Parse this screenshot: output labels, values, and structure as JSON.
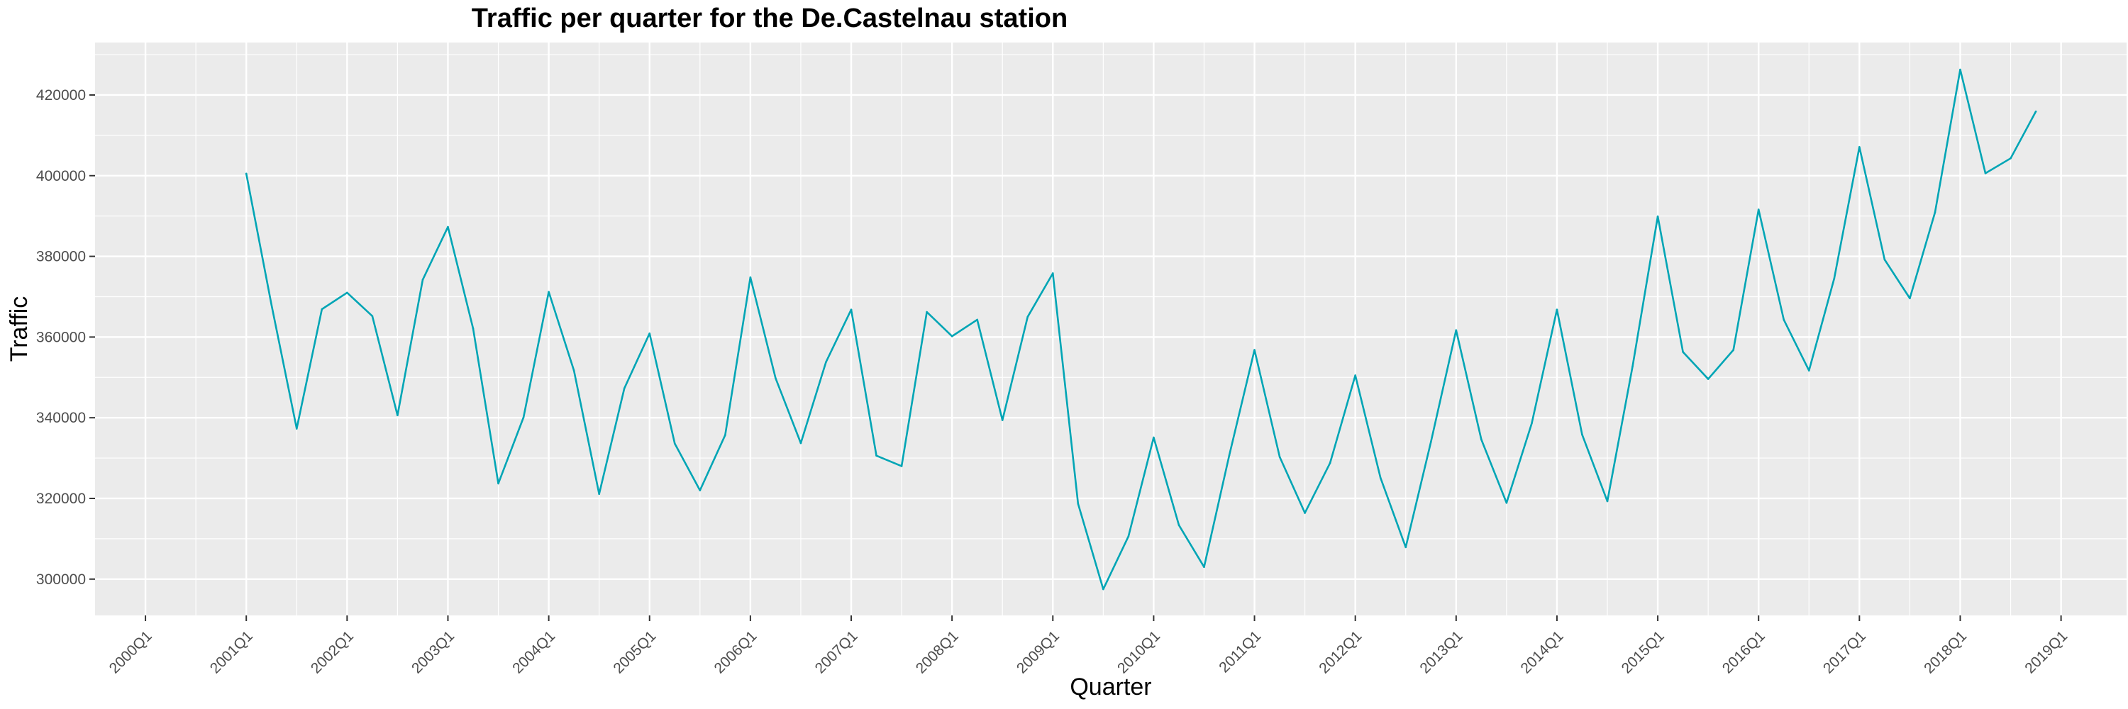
{
  "chart_data": {
    "type": "line",
    "title": "Traffic per quarter for the De.Castelnau station",
    "xlabel": "Quarter",
    "ylabel": "Traffic",
    "x_ticks": [
      "2000Q1",
      "2001Q1",
      "2002Q1",
      "2003Q1",
      "2004Q1",
      "2005Q1",
      "2006Q1",
      "2007Q1",
      "2008Q1",
      "2009Q1",
      "2010Q1",
      "2011Q1",
      "2012Q1",
      "2013Q1",
      "2014Q1",
      "2015Q1",
      "2016Q1",
      "2017Q1",
      "2018Q1",
      "2019Q1"
    ],
    "y_ticks": [
      "300000",
      "320000",
      "340000",
      "360000",
      "380000",
      "400000",
      "420000"
    ],
    "xlim": [
      1999.5,
      2019.65
    ],
    "ylim": [
      291000,
      433000
    ],
    "grid": true,
    "colors": {
      "line": "#00A5B5",
      "panel": "#EBEBEB",
      "grid": "#FFFFFF"
    },
    "series": [
      {
        "x": [
          "2001Q1",
          "2001Q2",
          "2001Q3",
          "2001Q4",
          "2002Q1",
          "2002Q2",
          "2002Q3",
          "2002Q4",
          "2003Q1",
          "2003Q2",
          "2003Q3",
          "2003Q4",
          "2004Q1",
          "2004Q2",
          "2004Q3",
          "2004Q4",
          "2005Q1",
          "2005Q2",
          "2005Q3",
          "2005Q4",
          "2006Q1",
          "2006Q2",
          "2006Q3",
          "2006Q4",
          "2007Q1",
          "2007Q2",
          "2007Q3",
          "2007Q4",
          "2008Q1",
          "2008Q2",
          "2008Q3",
          "2008Q4",
          "2009Q1",
          "2009Q2",
          "2009Q3",
          "2009Q4",
          "2010Q1",
          "2010Q2",
          "2010Q3",
          "2010Q4",
          "2011Q1",
          "2011Q2",
          "2011Q3",
          "2011Q4",
          "2012Q1",
          "2012Q2",
          "2012Q3",
          "2012Q4",
          "2013Q1",
          "2013Q2",
          "2013Q3",
          "2013Q4",
          "2014Q1",
          "2014Q2",
          "2014Q3",
          "2014Q4",
          "2015Q1",
          "2015Q2",
          "2015Q3",
          "2015Q4",
          "2016Q1",
          "2016Q2",
          "2016Q3",
          "2016Q4",
          "2017Q1",
          "2017Q2",
          "2017Q3",
          "2017Q4",
          "2018Q1",
          "2018Q2",
          "2018Q3",
          "2018Q4"
        ],
        "values": [
          400500,
          368000,
          337300,
          366900,
          371000,
          365200,
          340600,
          374200,
          387300,
          362100,
          323700,
          340100,
          371200,
          351700,
          321100,
          347300,
          360900,
          333600,
          322000,
          335700,
          374800,
          349800,
          333700,
          353800,
          366800,
          330600,
          328000,
          366200,
          360200,
          364300,
          339400,
          365000,
          375800,
          318700,
          297500,
          310600,
          335100,
          313400,
          303000,
          330700,
          356800,
          330300,
          316400,
          328800,
          350500,
          325100,
          307900,
          334000,
          361700,
          334600,
          318900,
          338600,
          366800,
          335800,
          319300,
          352700,
          389900,
          356300,
          349600,
          356800,
          391600,
          364300,
          351700,
          374500,
          407100,
          379200,
          369600,
          390900,
          426300,
          400600,
          404300,
          415900
        ]
      }
    ]
  }
}
